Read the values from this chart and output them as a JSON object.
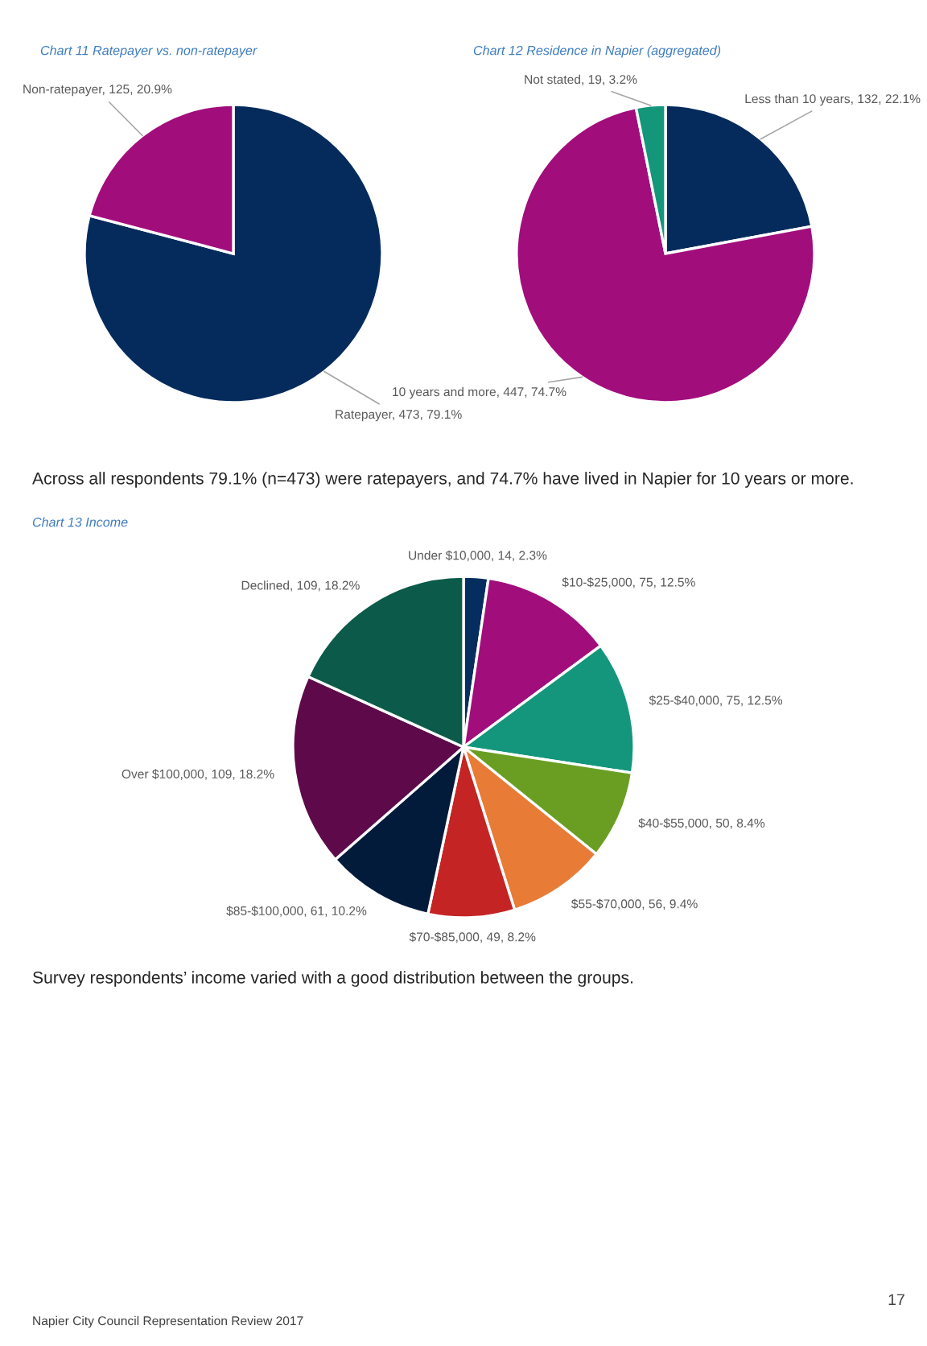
{
  "chart_data": [
    {
      "type": "pie",
      "title": "Chart 11 Ratepayer vs. non-ratepayer",
      "categories": [
        "Ratepayer",
        "Non-ratepayer"
      ],
      "values": [
        473,
        125
      ],
      "colors": [
        "#052b5c",
        "#a10e7c"
      ],
      "value_labels": [
        "473, 79.1%",
        "125, 20.9%"
      ]
    },
    {
      "type": "pie",
      "title": "Chart 12 Residence in Napier (aggregated)",
      "categories": [
        "Less than 10 years",
        "10 years and more",
        "Not stated"
      ],
      "values": [
        132,
        447,
        19
      ],
      "colors": [
        "#052b5c",
        "#a10e7c",
        "#14967a"
      ],
      "value_labels": [
        "132, 22.1%",
        "447, 74.7%",
        "19, 3.2%"
      ],
      "annotations": [
        "Across all respondents 79.1% (n=473) were ratepayers, and 74.7% have lived in Napier for 10 years or more."
      ]
    },
    {
      "type": "pie",
      "title": "Chart 13 Income",
      "categories": [
        "Under $10,000",
        "$10-$25,000",
        "$25-$40,000",
        "$40-$55,000",
        "$55-$70,000",
        "$70-$85,000",
        "$85-$100,000",
        "Over $100,000",
        "Declined"
      ],
      "values": [
        14,
        75,
        75,
        50,
        56,
        49,
        61,
        109,
        109
      ],
      "colors": [
        "#052d5e",
        "#a10e7c",
        "#13967b",
        "#6a9e22",
        "#e87b36",
        "#c42424",
        "#031b3b",
        "#5e0a4a",
        "#0c5a4a"
      ],
      "value_labels": [
        "14, 2.3%",
        "75, 12.5%",
        "75, 12.5%",
        "50, 8.4%",
        "56, 9.4%",
        "49, 8.2%",
        "61, 10.2%",
        "109, 18.2%",
        "109, 18.2%"
      ],
      "annotations": [
        "Survey respondents’ income varied with a good distribution between the groups.",
        "Napier City Council Representation Review 2017",
        "17"
      ]
    }
  ]
}
